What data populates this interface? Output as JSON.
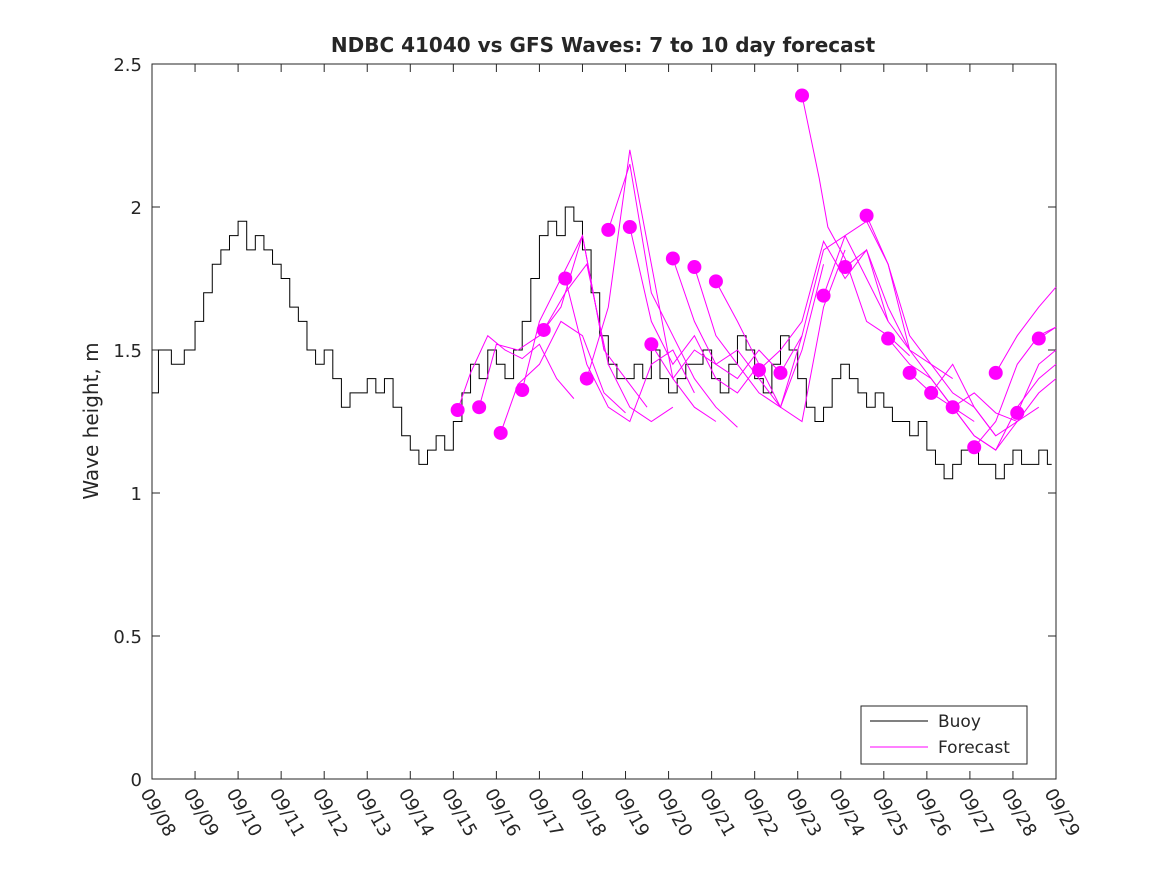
{
  "chart_data": {
    "type": "line",
    "title": "NDBC 41040 vs GFS Waves: 7 to 10 day forecast",
    "xlabel": "",
    "ylabel": "Wave height, m",
    "xlim": [
      0,
      21
    ],
    "ylim": [
      0,
      2.5
    ],
    "grid": false,
    "legend_position": "bottom-right",
    "x_ticks": [
      0,
      1,
      2,
      3,
      4,
      5,
      6,
      7,
      8,
      9,
      10,
      11,
      12,
      13,
      14,
      15,
      16,
      17,
      18,
      19,
      20,
      21
    ],
    "x_tick_labels": [
      "09/08",
      "09/09",
      "09/10",
      "09/11",
      "09/12",
      "09/13",
      "09/14",
      "09/15",
      "09/16",
      "09/17",
      "09/18",
      "09/19",
      "09/20",
      "09/21",
      "09/22",
      "09/23",
      "09/24",
      "09/25",
      "09/26",
      "09/27",
      "09/28",
      "09/29"
    ],
    "y_ticks": [
      0,
      0.5,
      1,
      1.5,
      2,
      2.5
    ],
    "y_tick_labels": [
      "0",
      "0.5",
      "1",
      "1.5",
      "2",
      "2.5"
    ],
    "series": [
      {
        "name": "Buoy",
        "color": "#000000",
        "x": [
          0.0,
          0.3,
          0.6,
          0.9,
          1.1,
          1.3,
          1.5,
          1.7,
          1.9,
          2.1,
          2.3,
          2.5,
          2.7,
          2.9,
          3.1,
          3.3,
          3.5,
          3.7,
          3.9,
          4.1,
          4.3,
          4.5,
          4.7,
          4.9,
          5.1,
          5.3,
          5.5,
          5.7,
          5.9,
          6.1,
          6.3,
          6.5,
          6.7,
          6.9,
          7.1,
          7.3,
          7.5,
          7.7,
          7.9,
          8.1,
          8.3,
          8.5,
          8.7,
          8.9,
          9.1,
          9.3,
          9.5,
          9.7,
          9.9,
          10.1,
          10.3,
          10.5,
          10.7,
          10.9,
          11.1,
          11.3,
          11.5,
          11.7,
          11.9,
          12.1,
          12.3,
          12.5,
          12.7,
          12.9,
          13.1,
          13.3,
          13.5,
          13.7,
          13.9,
          14.1,
          14.3,
          14.5,
          14.7,
          14.9,
          15.1,
          15.3,
          15.5,
          15.7,
          15.9,
          16.1,
          16.3,
          16.5,
          16.7,
          16.9,
          17.1,
          17.3,
          17.5,
          17.7,
          17.9,
          18.1,
          18.3,
          18.5,
          18.7,
          18.9,
          19.1,
          19.3,
          19.5,
          19.7,
          19.9,
          20.1,
          20.3,
          20.5,
          20.7,
          20.9
        ],
        "y": [
          1.35,
          1.5,
          1.45,
          1.5,
          1.6,
          1.7,
          1.8,
          1.85,
          1.9,
          1.95,
          1.85,
          1.9,
          1.85,
          1.8,
          1.75,
          1.65,
          1.6,
          1.5,
          1.45,
          1.5,
          1.4,
          1.3,
          1.35,
          1.35,
          1.4,
          1.35,
          1.4,
          1.3,
          1.2,
          1.15,
          1.1,
          1.15,
          1.2,
          1.15,
          1.25,
          1.35,
          1.45,
          1.4,
          1.5,
          1.45,
          1.4,
          1.5,
          1.6,
          1.75,
          1.9,
          1.95,
          1.9,
          2.0,
          1.95,
          1.85,
          1.7,
          1.55,
          1.45,
          1.4,
          1.4,
          1.45,
          1.4,
          1.5,
          1.4,
          1.35,
          1.4,
          1.45,
          1.45,
          1.5,
          1.4,
          1.35,
          1.45,
          1.55,
          1.5,
          1.4,
          1.35,
          1.45,
          1.55,
          1.5,
          1.4,
          1.3,
          1.25,
          1.3,
          1.4,
          1.45,
          1.4,
          1.35,
          1.3,
          1.35,
          1.3,
          1.25,
          1.25,
          1.2,
          1.25,
          1.15,
          1.1,
          1.05,
          1.1,
          1.15,
          1.15,
          1.1,
          1.1,
          1.05,
          1.1,
          1.15,
          1.1,
          1.1,
          1.15,
          1.1
        ]
      },
      {
        "name": "Forecast",
        "color": "#ff00ff",
        "runs": [
          {
            "x": [
              7.1,
              7.4,
              7.8,
              8.2,
              8.6,
              9.0,
              9.4,
              9.8
            ],
            "y": [
              1.29,
              1.42,
              1.55,
              1.5,
              1.47,
              1.52,
              1.4,
              1.33
            ]
          },
          {
            "x": [
              7.6,
              8.0,
              8.5,
              9.0,
              9.5,
              10.0,
              10.5
            ],
            "y": [
              1.3,
              1.52,
              1.5,
              1.55,
              1.65,
              1.9,
              1.5
            ]
          },
          {
            "x": [
              8.1,
              8.5,
              9.0,
              9.5,
              10.0,
              10.5,
              11.0
            ],
            "y": [
              1.21,
              1.38,
              1.45,
              1.6,
              1.55,
              1.35,
              1.28
            ]
          },
          {
            "x": [
              8.6,
              9.0,
              9.5,
              10.0,
              10.5,
              11.0,
              11.5
            ],
            "y": [
              1.36,
              1.6,
              1.75,
              1.9,
              1.5,
              1.4,
              1.3
            ]
          },
          {
            "x": [
              9.1,
              9.6,
              10.1,
              10.6,
              11.1,
              11.6,
              12.1
            ],
            "y": [
              1.57,
              1.7,
              1.8,
              1.45,
              1.3,
              1.25,
              1.3
            ]
          },
          {
            "x": [
              9.6,
              10.1,
              10.6,
              11.1,
              11.6,
              12.1,
              12.6
            ],
            "y": [
              1.75,
              1.45,
              1.3,
              1.25,
              1.45,
              1.5,
              1.35
            ]
          },
          {
            "x": [
              10.1,
              10.6,
              11.1,
              11.6,
              12.1,
              12.6,
              13.1
            ],
            "y": [
              1.4,
              1.65,
              2.2,
              1.8,
              1.4,
              1.3,
              1.25
            ]
          },
          {
            "x": [
              10.6,
              11.1,
              11.6,
              12.1,
              12.6,
              13.1,
              13.6
            ],
            "y": [
              1.92,
              2.15,
              1.7,
              1.55,
              1.4,
              1.3,
              1.23
            ]
          },
          {
            "x": [
              11.1,
              11.6,
              12.1,
              12.6,
              13.1,
              13.6,
              14.1
            ],
            "y": [
              1.93,
              1.6,
              1.45,
              1.55,
              1.4,
              1.35,
              1.45
            ]
          },
          {
            "x": [
              11.6,
              12.1,
              12.6,
              13.1,
              13.6,
              14.1,
              14.6
            ],
            "y": [
              1.52,
              1.4,
              1.5,
              1.45,
              1.4,
              1.5,
              1.42
            ]
          },
          {
            "x": [
              12.1,
              12.6,
              13.1,
              13.6,
              14.1,
              14.6,
              15.1
            ],
            "y": [
              1.82,
              1.6,
              1.45,
              1.5,
              1.4,
              1.3,
              1.55
            ]
          },
          {
            "x": [
              12.6,
              13.1,
              13.6,
              14.1,
              14.6,
              15.1,
              15.6
            ],
            "y": [
              1.79,
              1.55,
              1.45,
              1.35,
              1.3,
              1.5,
              1.8
            ]
          },
          {
            "x": [
              13.1,
              13.6,
              14.1,
              14.6,
              15.1,
              15.6,
              16.1
            ],
            "y": [
              1.74,
              1.6,
              1.45,
              1.3,
              1.25,
              1.65,
              1.85
            ]
          },
          {
            "x": [
              14.1,
              14.6,
              15.1,
              15.6,
              16.1,
              16.6,
              17.1
            ],
            "y": [
              1.43,
              1.5,
              1.6,
              1.88,
              1.75,
              1.85,
              1.6
            ]
          },
          {
            "x": [
              14.6,
              15.1,
              15.6,
              16.1,
              16.6,
              17.1,
              17.6
            ],
            "y": [
              1.42,
              1.55,
              1.85,
              1.9,
              1.75,
              1.6,
              1.5
            ]
          },
          {
            "x": [
              15.1,
              15.5,
              15.7,
              16.1,
              16.6,
              17.1,
              17.6
            ],
            "y": [
              2.39,
              2.1,
              1.93,
              1.82,
              1.6,
              1.55,
              1.48
            ]
          },
          {
            "x": [
              15.6,
              16.1,
              16.6,
              17.1,
              17.6,
              18.1,
              18.6
            ],
            "y": [
              1.69,
              1.9,
              1.95,
              1.8,
              1.5,
              1.45,
              1.4
            ]
          },
          {
            "x": [
              16.1,
              16.6,
              17.1,
              17.6,
              18.1,
              18.6,
              19.1
            ],
            "y": [
              1.79,
              1.85,
              1.65,
              1.5,
              1.4,
              1.3,
              1.25
            ]
          },
          {
            "x": [
              16.6,
              17.1,
              17.6,
              18.1,
              18.6,
              19.1,
              19.6
            ],
            "y": [
              1.97,
              1.8,
              1.55,
              1.45,
              1.35,
              1.3,
              1.2
            ]
          },
          {
            "x": [
              17.1,
              17.6,
              18.1,
              18.6,
              19.1,
              19.6,
              20.1
            ],
            "y": [
              1.54,
              1.45,
              1.4,
              1.3,
              1.35,
              1.28,
              1.25
            ]
          },
          {
            "x": [
              17.6,
              18.1,
              18.6,
              19.1,
              19.6,
              20.1,
              20.6
            ],
            "y": [
              1.42,
              1.35,
              1.45,
              1.3,
              1.2,
              1.25,
              1.3
            ]
          },
          {
            "x": [
              18.1,
              18.6,
              19.1,
              19.6,
              20.1,
              20.6,
              21.0
            ],
            "y": [
              1.35,
              1.3,
              1.2,
              1.15,
              1.3,
              1.4,
              1.45
            ]
          },
          {
            "x": [
              18.6,
              19.1,
              19.6,
              20.1,
              20.6,
              21.0
            ],
            "y": [
              1.3,
              1.2,
              1.15,
              1.25,
              1.35,
              1.4
            ]
          },
          {
            "x": [
              19.1,
              19.6,
              20.1,
              20.6,
              21.0
            ],
            "y": [
              1.16,
              1.25,
              1.45,
              1.55,
              1.58
            ]
          },
          {
            "x": [
              19.6,
              20.1,
              20.6,
              21.0
            ],
            "y": [
              1.42,
              1.55,
              1.65,
              1.72
            ]
          },
          {
            "x": [
              20.1,
              20.6,
              21.0
            ],
            "y": [
              1.28,
              1.45,
              1.5
            ]
          },
          {
            "x": [
              20.6,
              21.0
            ],
            "y": [
              1.54,
              1.58
            ]
          }
        ]
      }
    ]
  }
}
